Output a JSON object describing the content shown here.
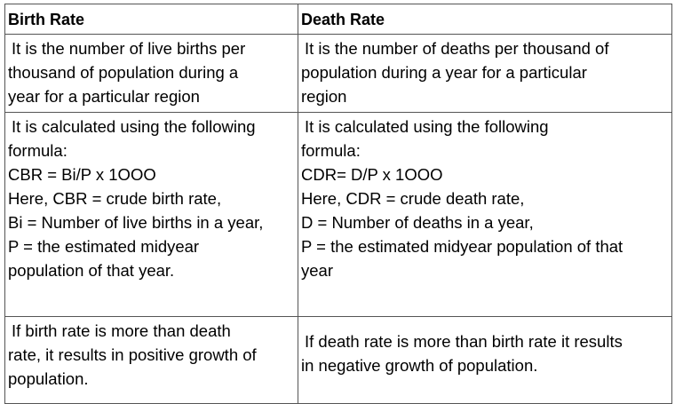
{
  "table": {
    "headers": [
      "Birth Rate",
      "Death Rate"
    ],
    "rows": [
      {
        "birth": [
          "It is the number of live births per",
          "thousand of population during a",
          "year for a particular region"
        ],
        "death": [
          "It is the number of deaths per thousand of",
          "population during a year for a particular",
          "region"
        ]
      },
      {
        "birth": [
          "It is calculated using the following",
          "formula:",
          "CBR = Bi/P x 1OOO",
          "Here, CBR = crude birth rate,",
          "Bi = Number of live births in a year,",
          "P = the estimated midyear",
          "population of that year."
        ],
        "death": [
          "It is calculated using the following",
          "formula:",
          "CDR= D/P x 1OOO",
          "Here, CDR = crude death rate,",
          "D = Number of deaths in a year,",
          "P = the estimated midyear population of that",
          "year"
        ]
      },
      {
        "birth": [
          "If birth rate is more than death",
          "rate, it results in positive growth of",
          "population."
        ],
        "death": [
          "If death rate is more than birth rate it results",
          "in negative growth of population."
        ]
      }
    ]
  }
}
